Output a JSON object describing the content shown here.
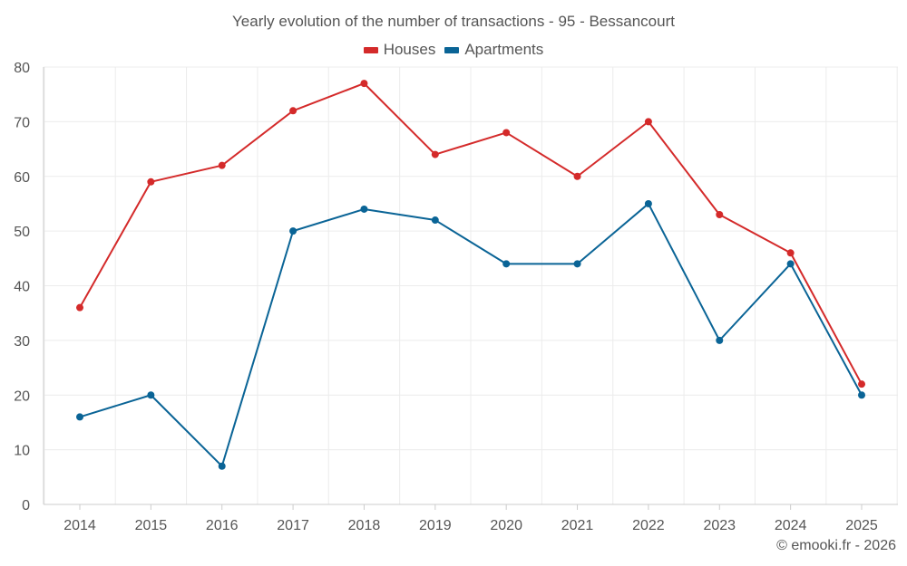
{
  "chart_data": {
    "type": "line",
    "title": "Yearly evolution of the number of transactions - 95 - Bessancourt",
    "xlabel": "",
    "ylabel": "",
    "categories": [
      "2014",
      "2015",
      "2016",
      "2017",
      "2018",
      "2019",
      "2020",
      "2021",
      "2022",
      "2023",
      "2024",
      "2025"
    ],
    "ylim": [
      0,
      80
    ],
    "yticks": [
      0,
      10,
      20,
      30,
      40,
      50,
      60,
      70,
      80
    ],
    "grid": true,
    "legend_position": "top-center",
    "series": [
      {
        "name": "Houses",
        "color": "#d42a2a",
        "values": [
          36,
          59,
          62,
          72,
          77,
          64,
          68,
          60,
          70,
          53,
          46,
          22
        ]
      },
      {
        "name": "Apartments",
        "color": "#0a6496",
        "values": [
          16,
          20,
          7,
          50,
          54,
          52,
          44,
          44,
          55,
          30,
          44,
          20
        ]
      }
    ]
  },
  "credit": "© emooki.fr - 2026"
}
